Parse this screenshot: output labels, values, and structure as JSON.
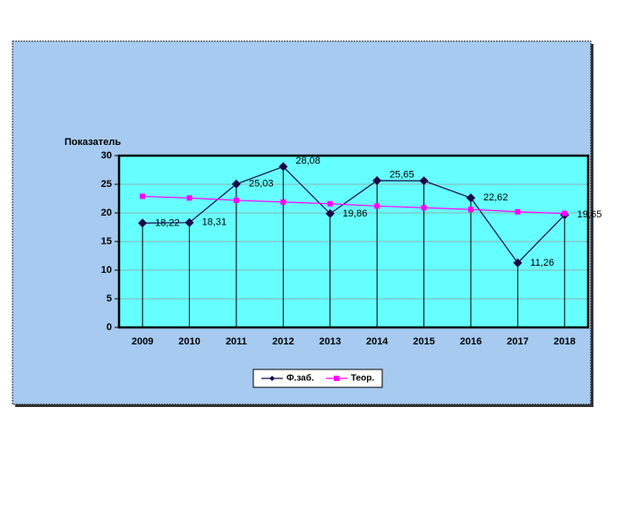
{
  "chart_data": {
    "type": "line",
    "y_axis_label": "Показатель",
    "categories": [
      "2009",
      "2010",
      "2011",
      "2012",
      "2013",
      "2014",
      "2015",
      "2016",
      "2017",
      "2018"
    ],
    "series": [
      {
        "name": "Ф.заб.",
        "color": "#1a0a4a",
        "marker": "diamond",
        "drop_lines": true,
        "values": [
          18.22,
          18.31,
          25.03,
          28.08,
          19.86,
          25.65,
          25.6,
          22.62,
          11.26,
          19.65
        ],
        "value_labels": [
          "18,22",
          "18,31",
          "25,03",
          "28,08",
          "19,86",
          "25,65",
          null,
          "22,62",
          "11,26",
          "19,65"
        ]
      },
      {
        "name": "Теор.",
        "color": "#ff00ff",
        "marker": "square",
        "values": [
          22.9,
          22.6,
          22.2,
          21.9,
          21.6,
          21.2,
          20.9,
          20.6,
          20.2,
          19.9
        ]
      }
    ],
    "ylim": [
      0,
      30
    ],
    "yticks": [
      0,
      5,
      10,
      15,
      20,
      25,
      30
    ],
    "grid": true,
    "legend": "bottom"
  }
}
